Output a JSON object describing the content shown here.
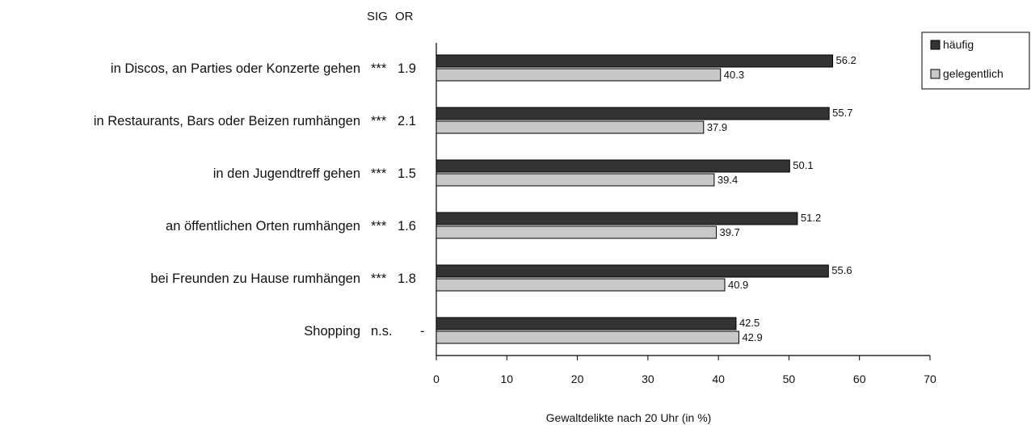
{
  "chart_data": {
    "type": "bar",
    "orientation": "horizontal",
    "title": "",
    "xlabel": "Gewaltdelikte nach 20 Uhr (in %)",
    "ylabel": "",
    "xlim": [
      0,
      70
    ],
    "xticks": [
      0,
      10,
      20,
      30,
      40,
      50,
      60,
      70
    ],
    "grid": false,
    "legend_position": "top-right",
    "column_headers": [
      "SIG",
      "OR"
    ],
    "categories": [
      "in Discos, an Parties oder Konzerte gehen",
      "in Restaurants, Bars oder Beizen rumhängen",
      "in den Jugendtreff gehen",
      "an öffentlichen Orten rumhängen",
      "bei Freunden zu Hause rumhängen",
      "Shopping"
    ],
    "sig": [
      "***",
      "***",
      "***",
      "***",
      "***",
      "n.s."
    ],
    "or": [
      "1.9",
      "2.1",
      "1.5",
      "1.6",
      "1.8",
      "-"
    ],
    "series": [
      {
        "name": "häufig",
        "color": "#333333",
        "values": [
          56.2,
          55.7,
          50.1,
          51.2,
          55.6,
          42.5
        ]
      },
      {
        "name": "gelegentlich",
        "color": "#c8c8c8",
        "values": [
          40.3,
          37.9,
          39.4,
          39.7,
          40.9,
          42.9
        ]
      }
    ]
  }
}
